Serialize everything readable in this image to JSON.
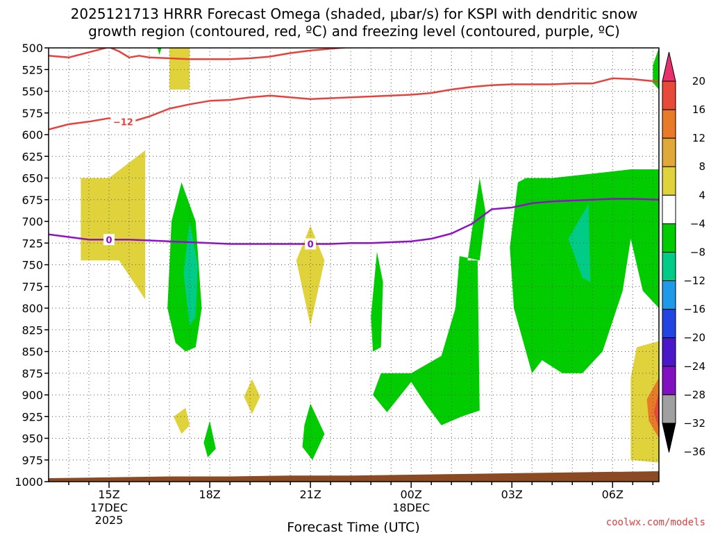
{
  "chart_data": {
    "type": "time-height",
    "title_line1": "2025121713 HRRR Forecast Omega (shaded, μbar/s) for KSPI with dendritic snow",
    "title_line2": "growth region (contoured, red, ºC) and freezing level (contoured, purple, ºC)",
    "xlabel": "Forecast Time (UTC)",
    "credit": "coolwx.com/models",
    "x_range_hours": [
      13,
      43.3
    ],
    "y_range_mb": [
      500,
      1000
    ],
    "y_ticks": [
      500,
      525,
      550,
      575,
      600,
      625,
      650,
      675,
      700,
      725,
      750,
      775,
      800,
      825,
      850,
      875,
      900,
      925,
      950,
      975,
      1000
    ],
    "x_major_ticks": [
      {
        "hour": 16,
        "label": "15Z",
        "date": "17DEC",
        "year": "2025"
      },
      {
        "hour": 21,
        "label": "18Z",
        "date": "",
        "year": ""
      },
      {
        "hour": 26,
        "label": "21Z",
        "date": "",
        "year": ""
      },
      {
        "hour": 31,
        "label": "00Z",
        "date": "18DEC",
        "year": ""
      },
      {
        "hour": 36,
        "label": "03Z",
        "date": "",
        "year": ""
      },
      {
        "hour": 41,
        "label": "06Z",
        "date": "",
        "year": ""
      }
    ],
    "x_minor_tick_hours": [
      14,
      15,
      17,
      18,
      19,
      20,
      22,
      23,
      24,
      25,
      27,
      28,
      29,
      30,
      32,
      33,
      34,
      35,
      37,
      38,
      39,
      40,
      42,
      43
    ],
    "colorbar": {
      "labels": [
        "20",
        "16",
        "12",
        "8",
        "4",
        "−4",
        "−8",
        "−12",
        "−16",
        "−20",
        "−24",
        "−28",
        "−32",
        "−36"
      ],
      "colors": [
        "#e8306c",
        "#e84a3a",
        "#e87a28",
        "#e0a838",
        "#e0d23a",
        "#ffffff",
        "#00cc00",
        "#00cc88",
        "#1e9ae8",
        "#2244e0",
        "#4a18c8",
        "#8010c0",
        "#a0a0a0",
        "#000000"
      ]
    },
    "series": [
      {
        "name": "-12 °C isotherm (upper)",
        "color": "#e8403c",
        "label": "",
        "x": [
          13,
          14,
          15,
          16,
          16.5,
          17,
          17.5,
          18,
          19,
          20,
          21,
          22,
          23,
          24,
          25,
          26,
          27,
          28,
          29,
          30,
          31,
          31.5
        ],
        "y": [
          509,
          511,
          505,
          499,
          504,
          511,
          509,
          511,
          512,
          513,
          513,
          513,
          512,
          510,
          506,
          503,
          501,
          499,
          498,
          497,
          496,
          495
        ]
      },
      {
        "name": "-12 °C isotherm (lower)",
        "color": "#e8403c",
        "label": "−12",
        "x": [
          13,
          14,
          15,
          16,
          17,
          18,
          19,
          20,
          21,
          22,
          23,
          24,
          25,
          26,
          27,
          28,
          29,
          30,
          31,
          32,
          33,
          34,
          35,
          36,
          37,
          38,
          39,
          40,
          41,
          42,
          43.3
        ],
        "y": [
          594,
          588,
          585,
          581,
          586,
          579,
          570,
          565,
          561,
          560,
          557,
          555,
          557,
          559,
          558,
          557,
          556,
          555,
          554,
          552,
          548,
          545,
          543,
          542,
          542,
          542,
          541,
          541,
          535,
          536,
          539
        ]
      },
      {
        "name": "0 °C freezing level",
        "color": "#9010c8",
        "label": "0",
        "x": [
          13,
          14,
          15,
          16,
          17,
          18,
          19,
          20,
          21,
          22,
          23,
          24,
          25,
          26,
          27,
          28,
          29,
          30,
          31,
          32,
          33,
          34,
          35,
          36,
          37,
          38,
          39,
          40,
          41,
          42,
          43.3
        ],
        "y": [
          715,
          718,
          721,
          721,
          721,
          722,
          723,
          724,
          725,
          726,
          726,
          726,
          726,
          726,
          726,
          725,
          725,
          724,
          723,
          720,
          714,
          703,
          686,
          684,
          679,
          677,
          676,
          675,
          674,
          674,
          675
        ]
      }
    ],
    "omega_regions": [
      {
        "color": "#e0d23a",
        "points": [
          [
            14.6,
            650
          ],
          [
            16,
            650
          ],
          [
            17.8,
            618
          ],
          [
            17.8,
            790
          ],
          [
            16.5,
            745
          ],
          [
            14.6,
            745
          ]
        ]
      },
      {
        "color": "#e0d23a",
        "points": [
          [
            19,
            498
          ],
          [
            20,
            498
          ],
          [
            20,
            548
          ],
          [
            19,
            548
          ],
          [
            19,
            530
          ]
        ]
      },
      {
        "color": "#e0d23a",
        "points": [
          [
            26,
            705
          ],
          [
            26.7,
            745
          ],
          [
            26,
            820
          ],
          [
            25.3,
            745
          ]
        ]
      },
      {
        "color": "#e0d23a",
        "points": [
          [
            19.8,
            915
          ],
          [
            20,
            935
          ],
          [
            19.6,
            945
          ],
          [
            19.2,
            925
          ]
        ]
      },
      {
        "color": "#e0d23a",
        "points": [
          [
            23.1,
            882
          ],
          [
            23.5,
            902
          ],
          [
            23.1,
            922
          ],
          [
            22.7,
            902
          ]
        ]
      },
      {
        "color": "#e0d23a",
        "points": [
          [
            42.2,
            845
          ],
          [
            43.3,
            838
          ],
          [
            43.3,
            978
          ],
          [
            41.9,
            975
          ],
          [
            41.9,
            880
          ]
        ]
      },
      {
        "color": "#00cc00",
        "points": [
          [
            18.4,
            500
          ],
          [
            18.6,
            500
          ],
          [
            18.5,
            508
          ]
        ]
      },
      {
        "color": "#00cc00",
        "points": [
          [
            19.6,
            655
          ],
          [
            20.3,
            700
          ],
          [
            20.6,
            800
          ],
          [
            20.3,
            845
          ],
          [
            19.8,
            850
          ],
          [
            19.3,
            840
          ],
          [
            18.9,
            800
          ],
          [
            19.1,
            700
          ]
        ]
      },
      {
        "color": "#00cc88",
        "points": [
          [
            20,
            700
          ],
          [
            20.4,
            750
          ],
          [
            20.3,
            810
          ],
          [
            20,
            820
          ],
          [
            19.7,
            760
          ]
        ]
      },
      {
        "color": "#00cc00",
        "points": [
          [
            21,
            930
          ],
          [
            21.3,
            962
          ],
          [
            20.9,
            972
          ],
          [
            20.7,
            955
          ]
        ]
      },
      {
        "color": "#00cc00",
        "points": [
          [
            26,
            910
          ],
          [
            26.7,
            945
          ],
          [
            26.1,
            975
          ],
          [
            25.6,
            960
          ],
          [
            25.7,
            935
          ]
        ]
      },
      {
        "color": "#00cc00",
        "points": [
          [
            29.3,
            735
          ],
          [
            29.6,
            770
          ],
          [
            29.5,
            845
          ],
          [
            29.1,
            850
          ],
          [
            29.0,
            810
          ]
        ]
      },
      {
        "color": "#00cc00",
        "points": [
          [
            29.5,
            875
          ],
          [
            31,
            875
          ],
          [
            32.5,
            855
          ],
          [
            33.2,
            800
          ],
          [
            33.4,
            740
          ],
          [
            34.4,
            745
          ],
          [
            34.7,
            690
          ],
          [
            34.4,
            650
          ],
          [
            33.8,
            745
          ],
          [
            34.3,
            745
          ],
          [
            34.4,
            918
          ],
          [
            33.5,
            925
          ],
          [
            32.5,
            935
          ],
          [
            31.7,
            910
          ],
          [
            31,
            885
          ],
          [
            29.8,
            920
          ],
          [
            29.1,
            900
          ]
        ]
      },
      {
        "color": "#00cc00",
        "points": [
          [
            36.3,
            655
          ],
          [
            36.7,
            650
          ],
          [
            38,
            650
          ],
          [
            40,
            645
          ],
          [
            41.9,
            640
          ],
          [
            43.3,
            640
          ],
          [
            43.3,
            720
          ],
          [
            43.3,
            800
          ],
          [
            42.5,
            780
          ],
          [
            41.9,
            720
          ],
          [
            41.5,
            780
          ],
          [
            40.5,
            850
          ],
          [
            39.5,
            875
          ],
          [
            38.5,
            875
          ],
          [
            37.5,
            860
          ],
          [
            37,
            875
          ],
          [
            36.1,
            800
          ],
          [
            35.9,
            730
          ]
        ]
      },
      {
        "color": "#00cc88",
        "points": [
          [
            38.8,
            720
          ],
          [
            39.8,
            680
          ],
          [
            39.9,
            770
          ],
          [
            39.5,
            765
          ]
        ]
      },
      {
        "color": "#00cc00",
        "points": [
          [
            43.0,
            520
          ],
          [
            43.3,
            500
          ],
          [
            43.3,
            548
          ],
          [
            43.0,
            540
          ]
        ]
      },
      {
        "color": "#e87a28",
        "points": [
          [
            43.3,
            880
          ],
          [
            43.3,
            950
          ],
          [
            42.8,
            930
          ],
          [
            42.7,
            905
          ]
        ]
      },
      {
        "color": "#e84a3a",
        "points": [
          [
            43.3,
            895
          ],
          [
            43.3,
            940
          ],
          [
            43.05,
            920
          ]
        ]
      }
    ],
    "ground_pressure_mb": [
      [
        13,
        996
      ],
      [
        16,
        995
      ],
      [
        19,
        994
      ],
      [
        22,
        994
      ],
      [
        25,
        993
      ],
      [
        28,
        993
      ],
      [
        31,
        992
      ],
      [
        34,
        991
      ],
      [
        37,
        990
      ],
      [
        40,
        989
      ],
      [
        43.3,
        988
      ]
    ]
  }
}
